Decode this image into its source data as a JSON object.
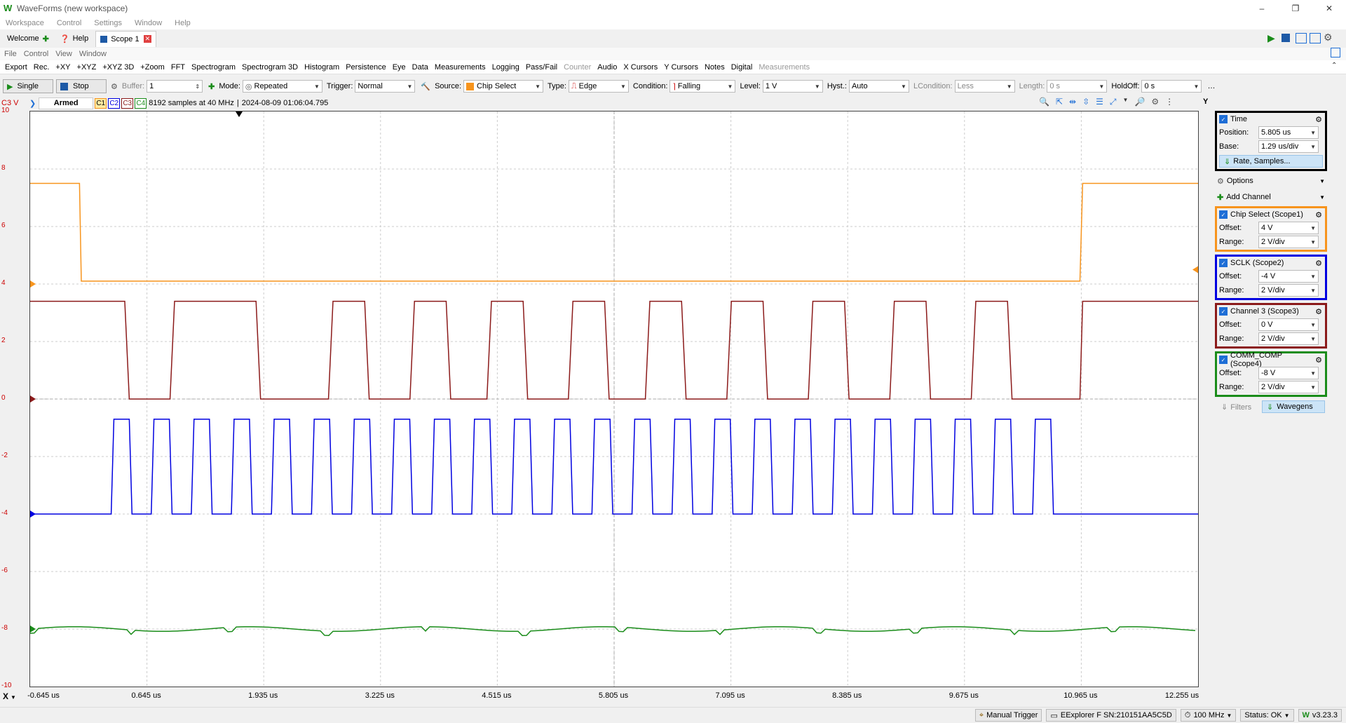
{
  "window": {
    "title": "WaveForms (new workspace)"
  },
  "menubar": [
    "Workspace",
    "Control",
    "Settings",
    "Window",
    "Help"
  ],
  "tabs": [
    {
      "label": "Welcome"
    },
    {
      "label": "Help"
    },
    {
      "label": "Scope 1"
    }
  ],
  "submenu": [
    "File",
    "Control",
    "View",
    "Window"
  ],
  "toolbar": {
    "items": [
      "Export",
      "Rec.",
      "+XY",
      "+XYZ",
      "+XYZ 3D",
      "+Zoom",
      "FFT",
      "Spectrogram",
      "Spectrogram 3D",
      "Histogram",
      "Persistence",
      "Eye",
      "Data",
      "Measurements",
      "Logging",
      "Pass/Fail"
    ],
    "disabled_items": [
      "Counter"
    ],
    "items2": [
      "Audio",
      "X Cursors",
      "Y Cursors",
      "Notes",
      "Digital"
    ],
    "disabled_items2": [
      "Measurements"
    ]
  },
  "controls": {
    "single": "Single",
    "stop": "Stop",
    "buffer_label": "Buffer:",
    "buffer_value": "1",
    "mode_label": "Mode:",
    "mode_value": "Repeated",
    "trigger_label": "Trigger:",
    "trigger_value": "Normal",
    "source_label": "Source:",
    "source_value": "Chip Select",
    "type_label": "Type:",
    "type_value": "Edge",
    "condition_label": "Condition:",
    "condition_value": "Falling",
    "level_label": "Level:",
    "level_value": "1 V",
    "hyst_label": "Hyst.:",
    "hyst_value": "Auto",
    "lcondition_label": "LCondition:",
    "lcondition_value": "Less",
    "length_label": "Length:",
    "length_value": "0 s",
    "holdoff_label": "HoldOff:",
    "holdoff_value": "0 s"
  },
  "status_line": {
    "channel": "C3 V",
    "state": "Armed",
    "channels": [
      "C1",
      "C2",
      "C3",
      "C4"
    ],
    "info": "8192 samples at 40 MHz",
    "timestamp": "2024-08-09 01:06:04.795",
    "y_button": "Y"
  },
  "yaxis": {
    "ticks": [
      "10",
      "8",
      "6",
      "4",
      "2",
      "0",
      "-2",
      "-4",
      "-6",
      "-8",
      "-10"
    ]
  },
  "xaxis": {
    "label": "X",
    "ticks": [
      "-0.645 us",
      "0.645 us",
      "1.935 us",
      "3.225 us",
      "4.515 us",
      "5.805 us",
      "7.095 us",
      "8.385 us",
      "9.675 us",
      "10.965 us",
      "12.255 us"
    ]
  },
  "time": {
    "title": "Time",
    "position_label": "Position:",
    "position": "5.805 us",
    "base_label": "Base:",
    "base": "1.29 us/div",
    "rate_button": "Rate, Samples..."
  },
  "options": "Options",
  "add_channel": "Add Channel",
  "channels": [
    {
      "name": "Chip Select (Scope1)",
      "offset": "4 V",
      "range": "2 V/div",
      "color": "#f7941d"
    },
    {
      "name": "SCLK (Scope2)",
      "offset": "-4 V",
      "range": "2 V/div",
      "color": "#0000e0"
    },
    {
      "name": "Channel 3 (Scope3)",
      "offset": "0 V",
      "range": "2 V/div",
      "color": "#8b1a1a"
    },
    {
      "name": "COMM_COMP (Scope4)",
      "offset": "-8 V",
      "range": "2 V/div",
      "color": "#1a8c1a"
    }
  ],
  "offset_label": "Offset:",
  "range_label": "Range:",
  "filters": "Filters",
  "wavegens": "Wavegens",
  "statusbar": {
    "manual_trigger": "Manual Trigger",
    "device": "EExplorer F SN:210151AA5C5D",
    "clock": "100 MHz",
    "status": "Status: OK",
    "version": "v3.23.3"
  }
}
